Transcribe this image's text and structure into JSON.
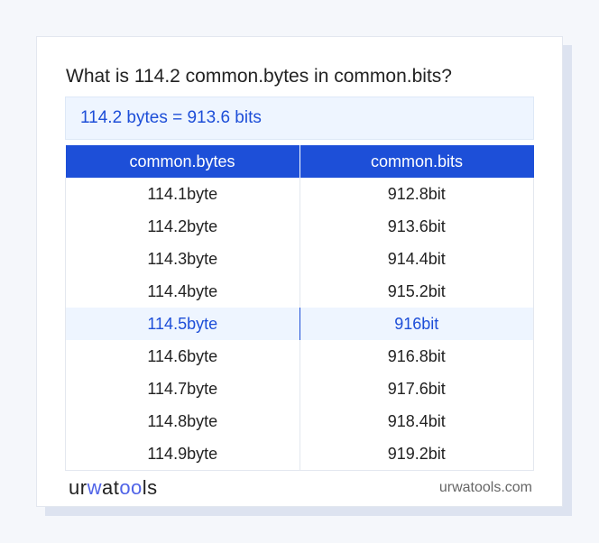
{
  "title": "What is 114.2 common.bytes in common.bits?",
  "result": "114.2 bytes = 913.6 bits",
  "table": {
    "headers": [
      "common.bytes",
      "common.bits"
    ],
    "rows": [
      [
        "114.1byte",
        "912.8bit"
      ],
      [
        "114.2byte",
        "913.6bit"
      ],
      [
        "114.3byte",
        "914.4bit"
      ],
      [
        "114.4byte",
        "915.2bit"
      ],
      [
        "114.5byte",
        "916bit"
      ],
      [
        "114.6byte",
        "916.8bit"
      ],
      [
        "114.7byte",
        "917.6bit"
      ],
      [
        "114.8byte",
        "918.4bit"
      ],
      [
        "114.9byte",
        "919.2bit"
      ]
    ],
    "highlighted_row": 4
  },
  "footer": {
    "logo": "urwatools",
    "site": "urwatools.com"
  },
  "colors": {
    "accent": "#1d4fd8",
    "highlight_bg": "#eef5ff"
  }
}
